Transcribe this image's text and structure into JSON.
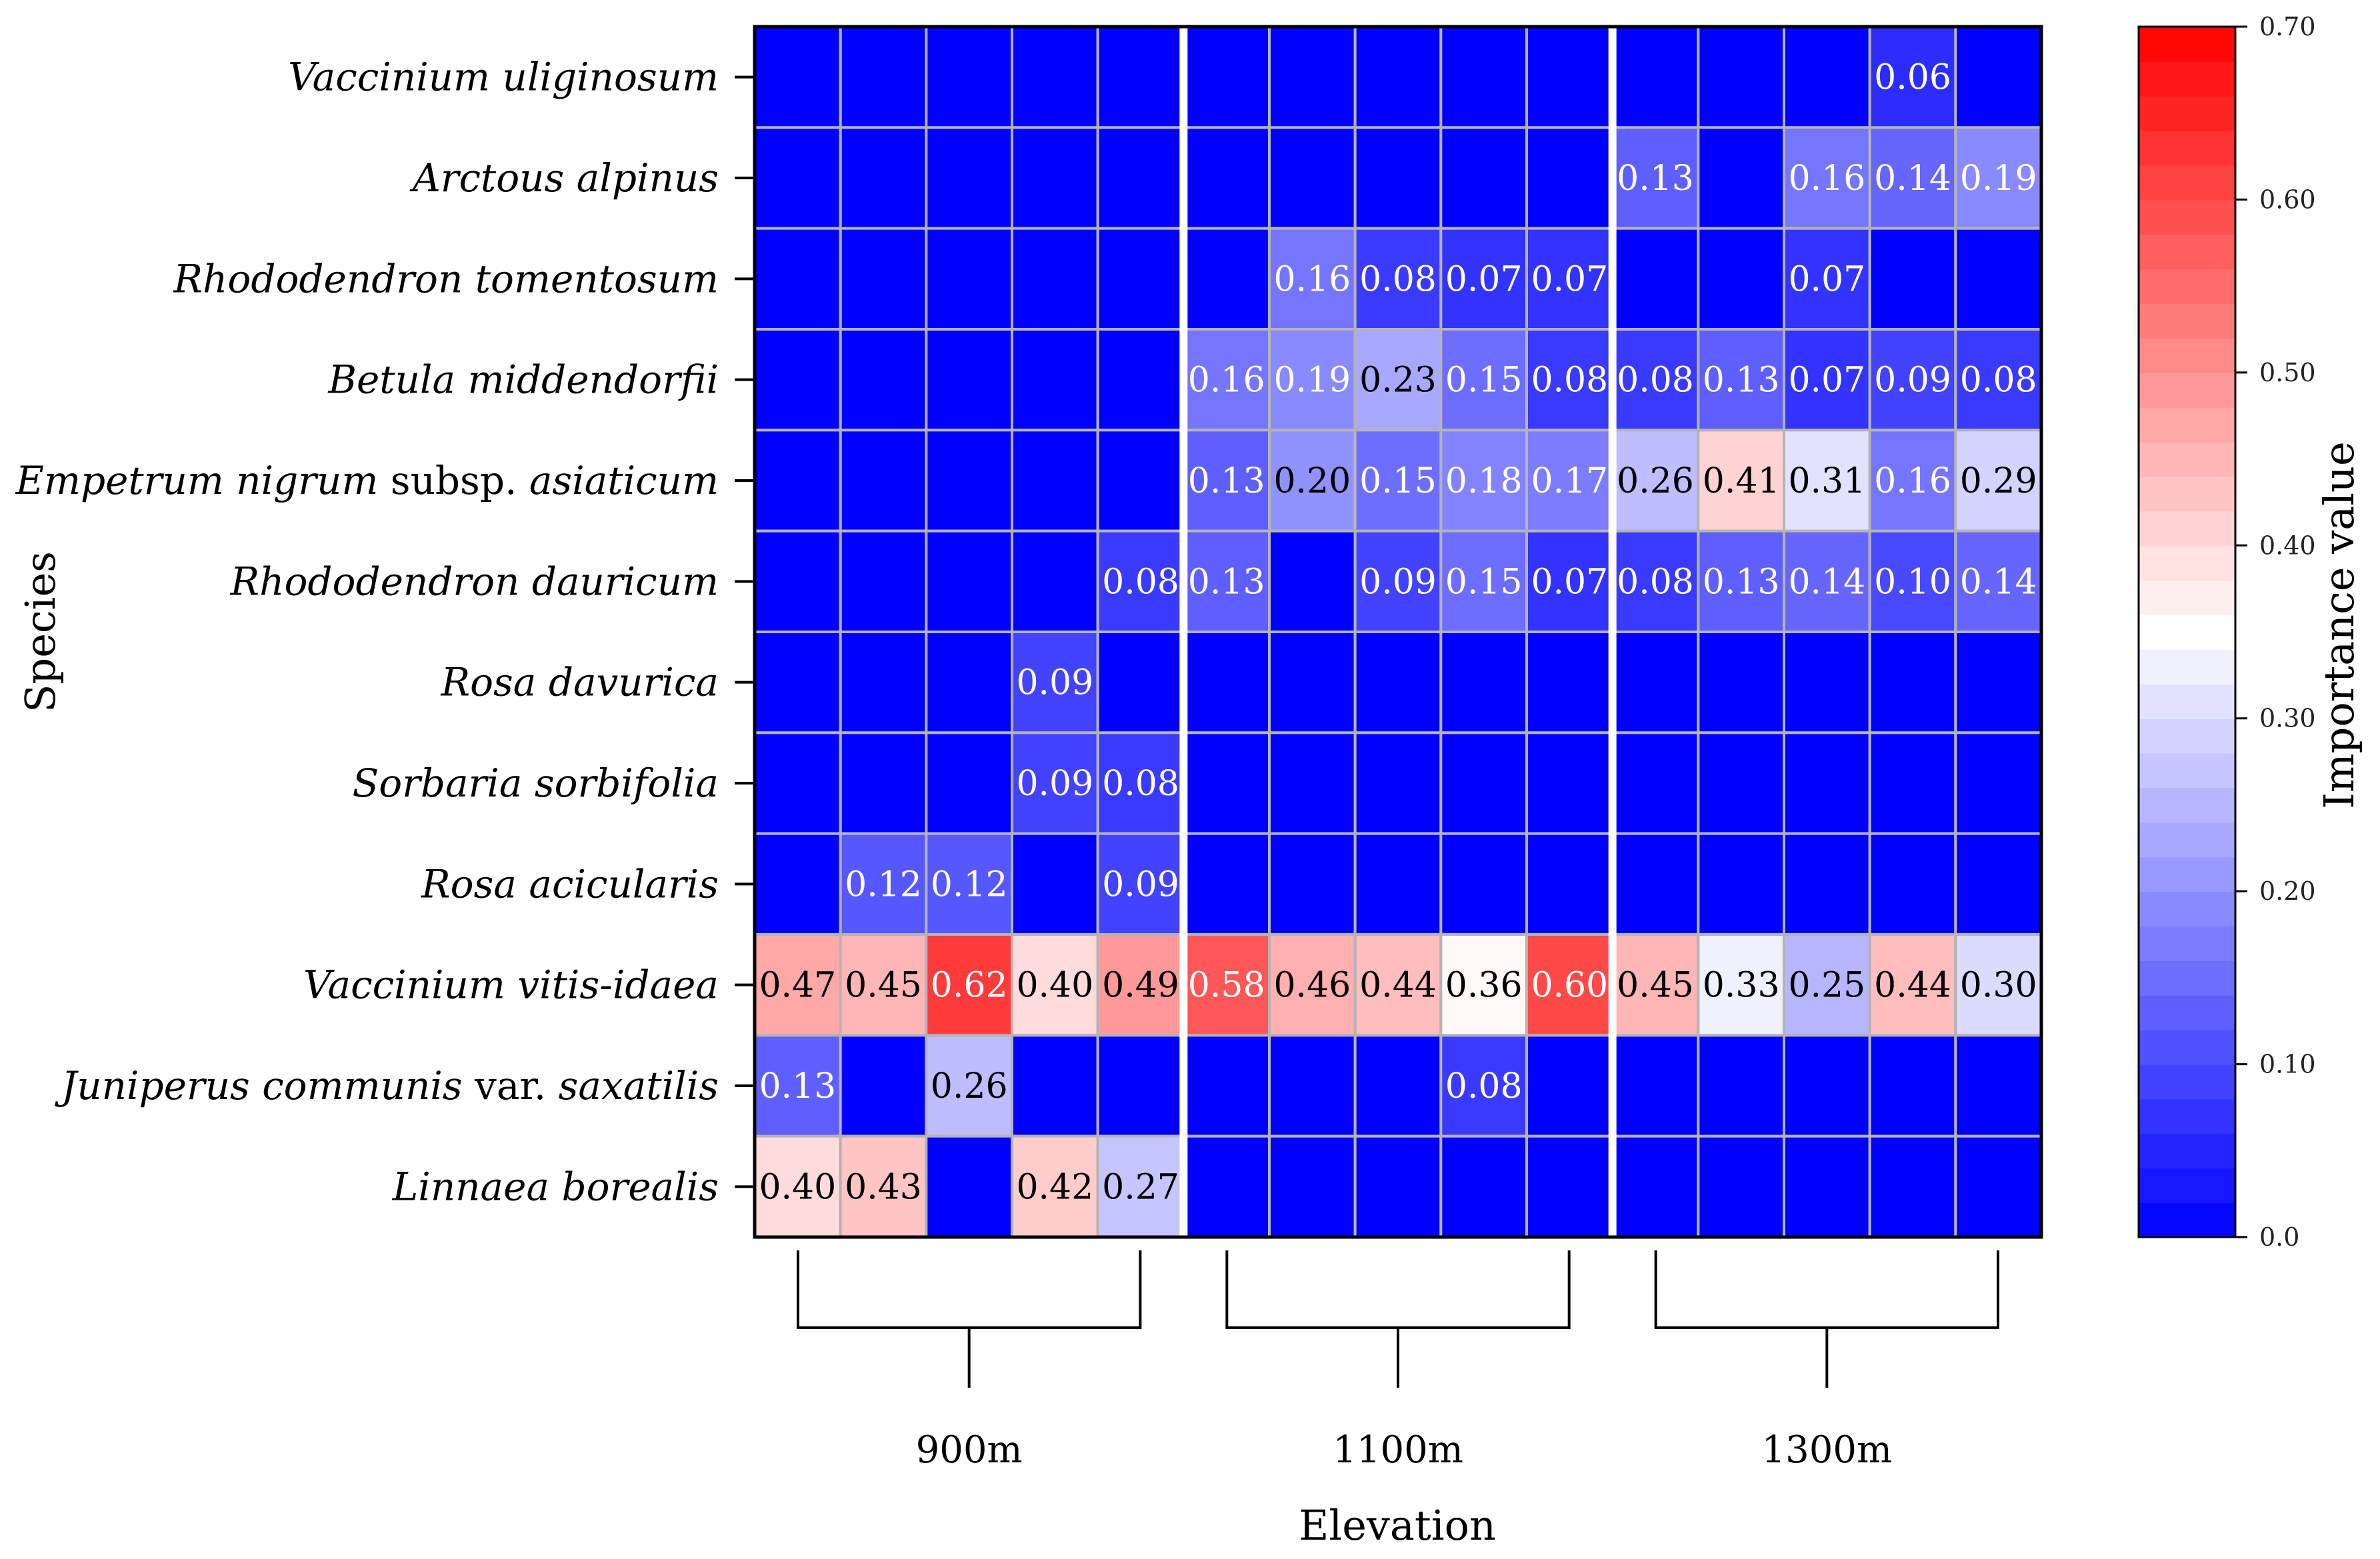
{
  "chart_data": {
    "type": "heatmap",
    "title": "",
    "xlabel": "Elevation",
    "ylabel": "Species",
    "colorbar_label": "Importance value",
    "colorbar_ticks": [
      "0.0",
      "0.10",
      "0.20",
      "0.30",
      "0.40",
      "0.50",
      "0.60",
      "0.70"
    ],
    "value_range": [
      0,
      0.7
    ],
    "colormap": [
      "#0000ff",
      "#ffffff",
      "#ff0000"
    ],
    "colormap_midpoint": 0.35,
    "group_labels": [
      "900m",
      "1100m",
      "1300m"
    ],
    "plots_per_group": 5,
    "species": [
      {
        "pre": "",
        "italic": "Vaccinium uliginosum",
        "mid": "",
        "tail": ""
      },
      {
        "pre": "",
        "italic": "Arctous alpinus",
        "mid": "",
        "tail": ""
      },
      {
        "pre": "",
        "italic": "Rhododendron tomentosum",
        "mid": "",
        "tail": ""
      },
      {
        "pre": "",
        "italic": "Betula middendorfii",
        "mid": "",
        "tail": ""
      },
      {
        "pre": "",
        "italic": "Empetrum nigrum",
        "mid": " subsp. ",
        "tail": "asiaticum"
      },
      {
        "pre": "",
        "italic": "Rhododendron dauricum",
        "mid": "",
        "tail": ""
      },
      {
        "pre": "",
        "italic": "Rosa davurica",
        "mid": "",
        "tail": ""
      },
      {
        "pre": "",
        "italic": "Sorbaria sorbifolia",
        "mid": "",
        "tail": ""
      },
      {
        "pre": "",
        "italic": "Rosa acicularis",
        "mid": "",
        "tail": ""
      },
      {
        "pre": "",
        "italic": "Vaccinium vitis-idaea",
        "mid": "",
        "tail": ""
      },
      {
        "pre": "",
        "italic": "Juniperus communis",
        "mid": " var. ",
        "tail": "saxatilis"
      },
      {
        "pre": "",
        "italic": "Linnaea borealis",
        "mid": "",
        "tail": ""
      }
    ],
    "values": [
      [
        null,
        null,
        null,
        null,
        null,
        null,
        null,
        null,
        null,
        null,
        null,
        null,
        null,
        0.06,
        null
      ],
      [
        null,
        null,
        null,
        null,
        null,
        null,
        null,
        null,
        null,
        null,
        0.13,
        null,
        0.16,
        0.14,
        0.19
      ],
      [
        null,
        null,
        null,
        null,
        null,
        null,
        0.16,
        0.08,
        0.07,
        0.07,
        null,
        null,
        0.07,
        null,
        null
      ],
      [
        null,
        null,
        null,
        null,
        null,
        0.16,
        0.19,
        0.23,
        0.15,
        0.08,
        0.08,
        0.13,
        0.07,
        0.09,
        0.08
      ],
      [
        null,
        null,
        null,
        null,
        null,
        0.13,
        0.2,
        0.15,
        0.18,
        0.17,
        0.26,
        0.41,
        0.31,
        0.16,
        0.29
      ],
      [
        null,
        null,
        null,
        null,
        0.08,
        0.13,
        null,
        0.09,
        0.15,
        0.07,
        0.08,
        0.13,
        0.14,
        0.1,
        0.14
      ],
      [
        null,
        null,
        null,
        0.09,
        null,
        null,
        null,
        null,
        null,
        null,
        null,
        null,
        null,
        null,
        null
      ],
      [
        null,
        null,
        null,
        0.09,
        0.08,
        null,
        null,
        null,
        null,
        null,
        null,
        null,
        null,
        null,
        null
      ],
      [
        null,
        0.12,
        0.12,
        null,
        0.09,
        null,
        null,
        null,
        null,
        null,
        null,
        null,
        null,
        null,
        null
      ],
      [
        0.47,
        0.45,
        0.62,
        0.4,
        0.49,
        0.58,
        0.46,
        0.44,
        0.36,
        0.6,
        0.45,
        0.33,
        0.25,
        0.44,
        0.3
      ],
      [
        0.13,
        null,
        0.26,
        null,
        null,
        null,
        null,
        null,
        0.08,
        null,
        null,
        null,
        null,
        null,
        null
      ],
      [
        0.4,
        0.43,
        null,
        0.42,
        0.27,
        null,
        null,
        null,
        null,
        null,
        null,
        null,
        null,
        null,
        null
      ]
    ]
  }
}
